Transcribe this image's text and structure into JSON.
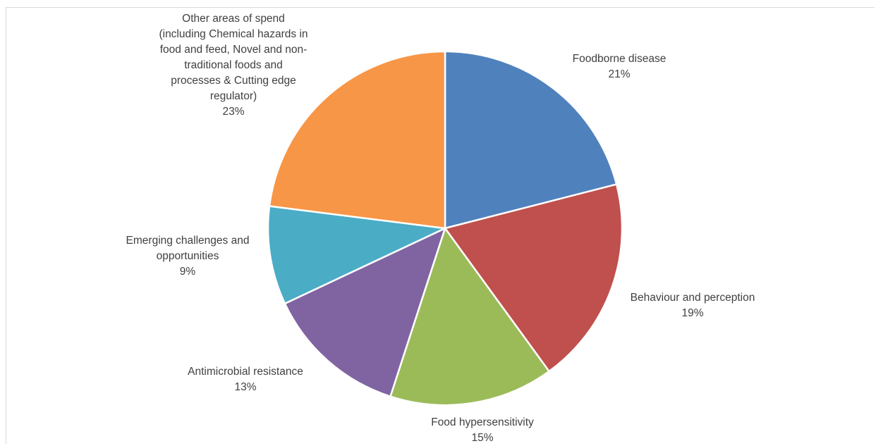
{
  "chart_data": {
    "type": "pie",
    "title": "",
    "legend": "none",
    "slices": [
      {
        "label": "Foodborne disease",
        "label_lines": [
          "Foodborne disease"
        ],
        "value": 21,
        "display": "21%",
        "color": "#4f81bd"
      },
      {
        "label": "Behaviour and perception",
        "label_lines": [
          "Behaviour and perception"
        ],
        "value": 19,
        "display": "19%",
        "color": "#c0504d"
      },
      {
        "label": "Food hypersensitivity",
        "label_lines": [
          "Food hypersensitivity"
        ],
        "value": 15,
        "display": "15%",
        "color": "#9bbb59"
      },
      {
        "label": "Antimicrobial resistance",
        "label_lines": [
          "Antimicrobial resistance"
        ],
        "value": 13,
        "display": "13%",
        "color": "#8064a2"
      },
      {
        "label": "Emerging challenges and opportunities",
        "label_lines": [
          "Emerging challenges and",
          "opportunities"
        ],
        "value": 9,
        "display": "9%",
        "color": "#4bacc6"
      },
      {
        "label": "Other areas of spend (including Chemical hazards in food and feed, Novel and non-traditional foods and processes & Cutting edge regulator)",
        "label_lines": [
          "Other areas of spend",
          "(including Chemical hazards in",
          "food and feed, Novel and non-",
          "traditional foods and",
          "processes & Cutting edge",
          "regulator)"
        ],
        "value": 23,
        "display": "23%",
        "color": "#f79646"
      }
    ]
  }
}
